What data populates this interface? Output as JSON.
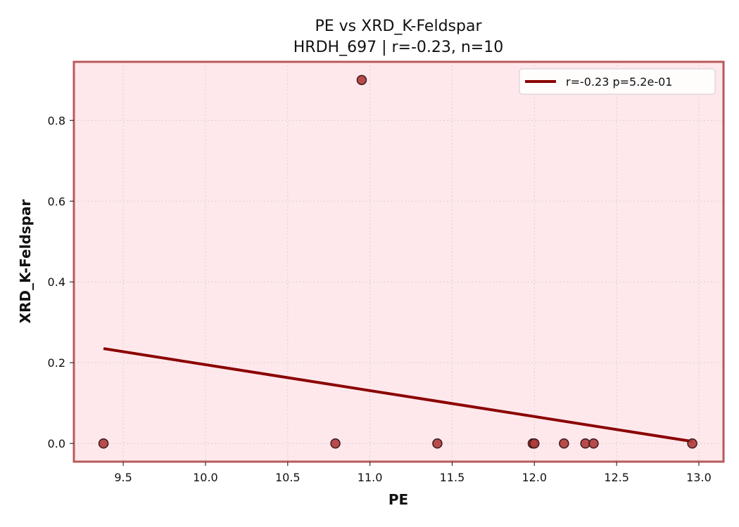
{
  "chart_data": {
    "type": "scatter",
    "title": "PE vs XRD_K-Feldspar",
    "subtitle": "HRDH_697 | r=-0.23, n=10",
    "xlabel": "PE",
    "ylabel": "XRD_K-Feldspar",
    "xlim": [
      9.2,
      13.15
    ],
    "ylim": [
      -0.045,
      0.945
    ],
    "x_ticks": [
      9.5,
      10.0,
      10.5,
      11.0,
      11.5,
      12.0,
      12.5,
      13.0
    ],
    "x_tick_labels": [
      "9.5",
      "10.0",
      "10.5",
      "11.0",
      "11.5",
      "12.0",
      "12.5",
      "13.0"
    ],
    "y_ticks": [
      0.0,
      0.2,
      0.4,
      0.6,
      0.8
    ],
    "y_tick_labels": [
      "0.0",
      "0.2",
      "0.4",
      "0.6",
      "0.8"
    ],
    "grid": true,
    "legend_position": "top-right",
    "points": [
      {
        "x": 9.38,
        "y": 0.0
      },
      {
        "x": 10.79,
        "y": 0.0
      },
      {
        "x": 10.95,
        "y": 0.9
      },
      {
        "x": 11.41,
        "y": 0.0
      },
      {
        "x": 11.99,
        "y": 0.0
      },
      {
        "x": 12.0,
        "y": 0.0
      },
      {
        "x": 12.18,
        "y": 0.0
      },
      {
        "x": 12.31,
        "y": 0.0
      },
      {
        "x": 12.36,
        "y": 0.0
      },
      {
        "x": 12.96,
        "y": 0.0
      }
    ],
    "fit_line": {
      "name": "r=-0.23  p=5.2e-01",
      "x": [
        9.38,
        12.96
      ],
      "y": [
        0.235,
        0.005
      ]
    },
    "colors": {
      "background": "#ffe8ec",
      "frame": "#b85a5a",
      "point_fill": "#b03a3a",
      "point_stroke": "#3a1a1a",
      "fit_line": "#8b0000",
      "grid": "#d8d0d0"
    }
  }
}
